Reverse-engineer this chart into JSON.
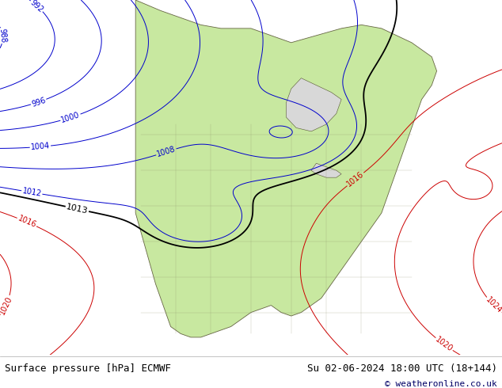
{
  "title_left": "Surface pressure [hPa] ECMWF",
  "title_right": "Su 02-06-2024 18:00 UTC (18+144)",
  "copyright": "© weatheronline.co.uk",
  "background_color": "#ffffff",
  "land_color": "#c8e8a0",
  "ocean_color": "#d8d8d8",
  "isobar_low_color": "#0000cc",
  "isobar_high_color": "#cc0000",
  "special_isobar_color": "#000000",
  "text_color": "#000000",
  "font_size_labels": 7,
  "font_size_title": 9,
  "font_size_copyright": 8,
  "figsize": [
    6.34,
    4.9
  ],
  "dpi": 100
}
